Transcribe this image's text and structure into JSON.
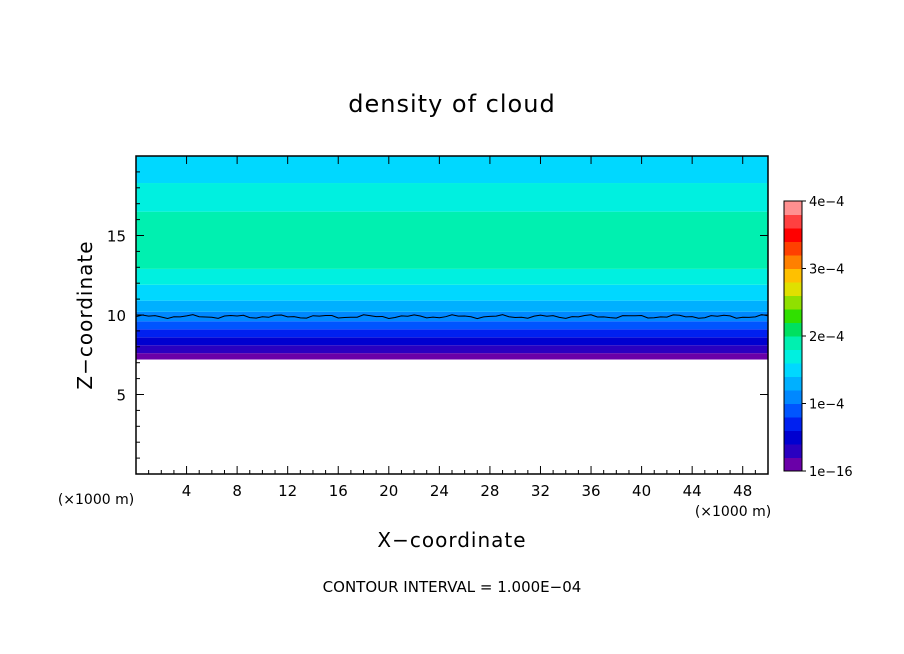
{
  "chart_data": {
    "type": "heatmap",
    "title": "density of cloud",
    "xlabel": "X−coordinate",
    "ylabel": "Z−coordinate",
    "x_unit_left": "(×1000 m)",
    "x_unit_right": "(×1000 m)",
    "xlim": [
      0,
      50
    ],
    "ylim": [
      0,
      20
    ],
    "x_ticks": [
      4,
      8,
      12,
      16,
      20,
      24,
      28,
      32,
      36,
      40,
      44,
      48
    ],
    "x_tick_labels": [
      "4",
      "8",
      "12",
      "16",
      "20",
      "24",
      "28",
      "32",
      "36",
      "40",
      "44",
      "48"
    ],
    "y_ticks": [
      5,
      10,
      15
    ],
    "y_tick_labels": [
      "5",
      "10",
      "15"
    ],
    "cloud_base_z": 7.2,
    "cloud_top_z": 20,
    "max_density_z": 15,
    "contour_line_z": 9.9,
    "colorbar": {
      "min": 1e-16,
      "max": 0.0004,
      "tick_values": [
        1e-16,
        0.0001,
        0.0002,
        0.0003,
        0.0004
      ],
      "tick_labels": [
        "1e−16",
        "1e−4",
        "2e−4",
        "3e−4",
        "4e−4"
      ],
      "colors": [
        "#6a00a8",
        "#2a00c0",
        "#0000d0",
        "#0020f0",
        "#0055ff",
        "#0088ff",
        "#00b0ff",
        "#00d8ff",
        "#00f0e0",
        "#00f0b0",
        "#00e060",
        "#30e000",
        "#90e000",
        "#e0e000",
        "#ffc000",
        "#ff8000",
        "#ff4000",
        "#ff0000",
        "#ff4040",
        "#ff9090"
      ]
    },
    "annotation": "CONTOUR INTERVAL = 1.000E−04",
    "grid": false
  }
}
